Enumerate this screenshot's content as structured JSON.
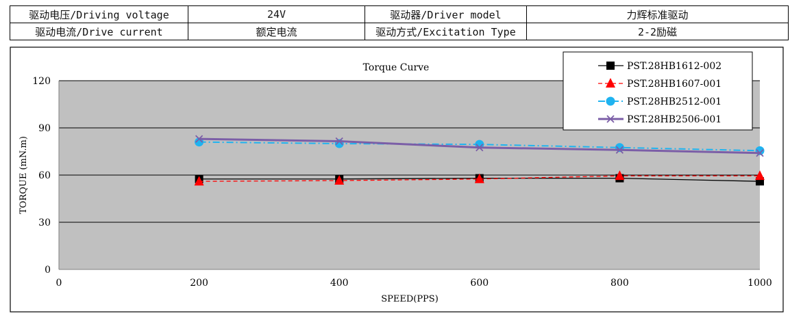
{
  "spec_table": {
    "rows": [
      {
        "label1": "驱动电压/Driving voltage",
        "value1": "24V",
        "label2": "驱动器/Driver model",
        "value2": "力辉标准驱动"
      },
      {
        "label1": "驱动电流/Drive current",
        "value1": "额定电流",
        "label2": "驱动方式/Excitation Type",
        "value2": "2-2励磁"
      }
    ]
  },
  "chart_data": {
    "type": "line",
    "title": "Torque Curve",
    "xlabel": "SPEED(PPS)",
    "ylabel": "TORQUE (mN.m)",
    "xlim": [
      0,
      1000
    ],
    "ylim": [
      0,
      120
    ],
    "xticks": [
      0,
      200,
      400,
      600,
      800,
      1000
    ],
    "yticks": [
      0,
      30,
      60,
      90,
      120
    ],
    "grid": true,
    "legend_position": "top-right",
    "x": [
      200,
      400,
      600,
      800,
      1000
    ],
    "series": [
      {
        "name": "PST.28HB1612-002",
        "values": [
          57.5,
          57.5,
          58,
          58,
          56
        ],
        "color": "#000000",
        "marker": "square",
        "dash": "solid"
      },
      {
        "name": "PST.28HB1607-001",
        "values": [
          56,
          56.5,
          57.5,
          59.5,
          59.5
        ],
        "color": "#ff0000",
        "marker": "triangle",
        "dash": "dashed"
      },
      {
        "name": "PST.28HB2512-001",
        "values": [
          81,
          80,
          79.5,
          77.5,
          75.5
        ],
        "color": "#1fb3f0",
        "marker": "circle",
        "dash": "dashdot"
      },
      {
        "name": "PST.28HB2506-001",
        "values": [
          83,
          81.5,
          77.5,
          76,
          74
        ],
        "color": "#7b5ea7",
        "marker": "x",
        "dash": "solid"
      }
    ]
  }
}
